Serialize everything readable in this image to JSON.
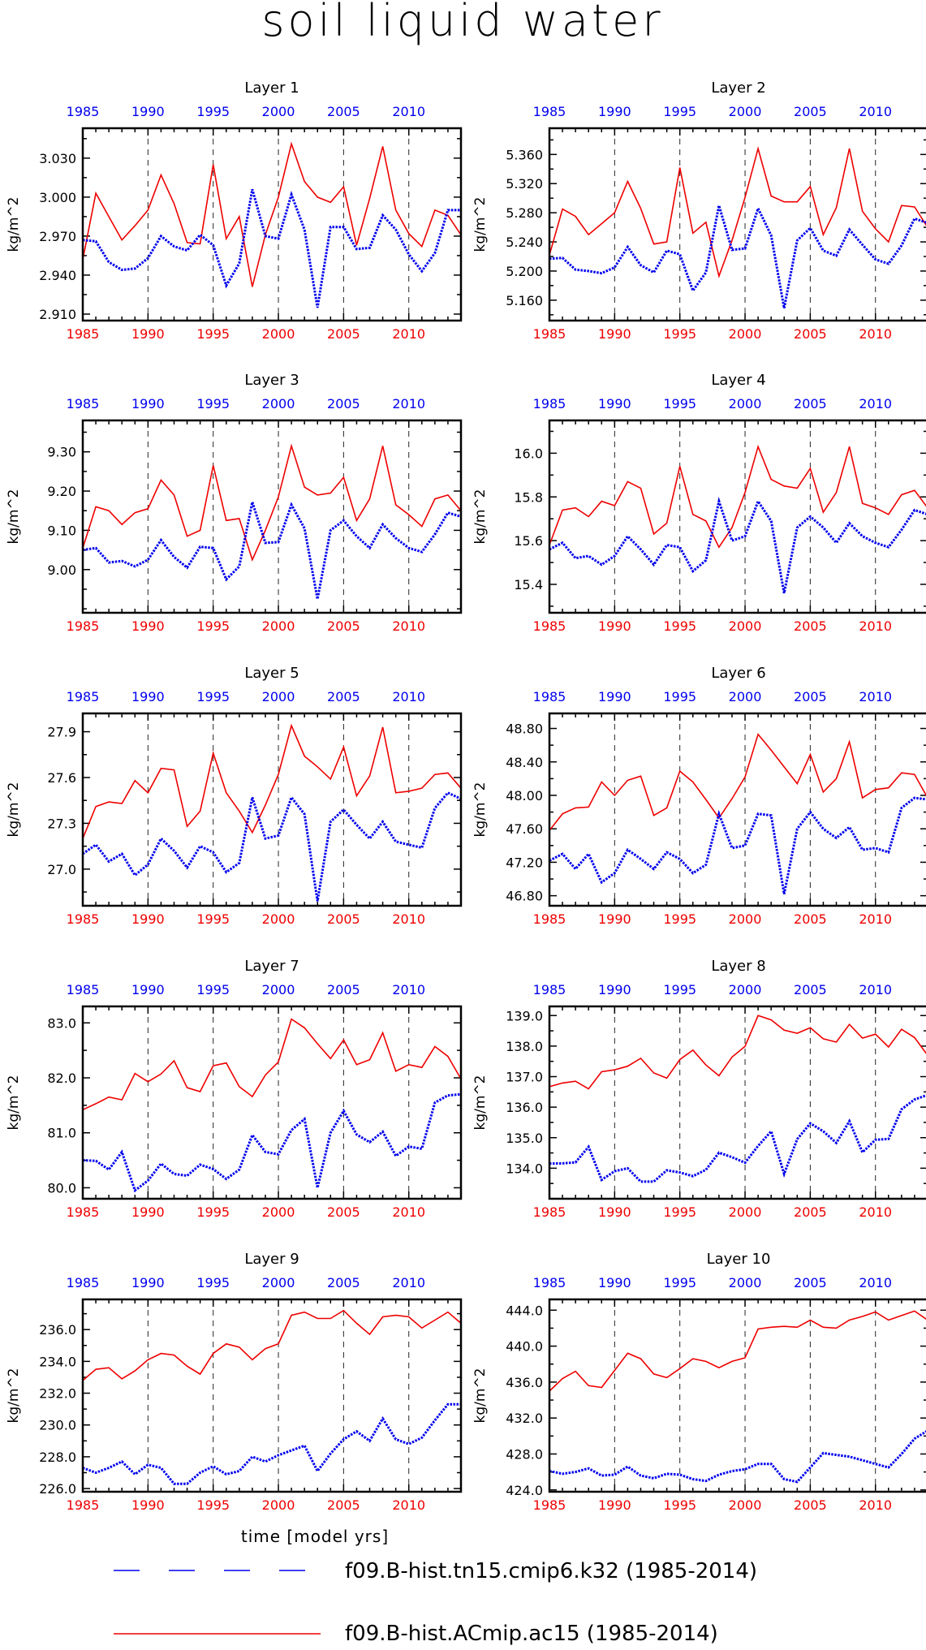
{
  "title": "soil liquid water",
  "colors": {
    "model_a": "#0000ee",
    "model_b": "#ee0000",
    "axis": "#000000"
  },
  "chart_data": [
    {
      "type": "line",
      "title": "Layer 1",
      "ylabel": "kg/m^2",
      "xlim": [
        1985,
        2014
      ],
      "ylim": [
        2.905,
        3.053
      ],
      "yticks": [
        "2.910",
        "2.940",
        "2.970",
        "3.000",
        "3.030"
      ],
      "ytick_values": [
        2.91,
        2.94,
        2.97,
        3.0,
        3.03
      ]
    },
    {
      "type": "line",
      "title": "Layer 2",
      "ylabel": "kg/m^2",
      "xlim": [
        1985,
        2014
      ],
      "ylim": [
        5.132,
        5.396
      ],
      "yticks": [
        "5.160",
        "5.200",
        "5.240",
        "5.280",
        "5.320",
        "5.360"
      ],
      "ytick_values": [
        5.16,
        5.2,
        5.24,
        5.28,
        5.32,
        5.36
      ]
    },
    {
      "type": "line",
      "title": "Layer 3",
      "ylabel": "kg/m^2",
      "xlim": [
        1985,
        2014
      ],
      "ylim": [
        8.89,
        9.38
      ],
      "yticks": [
        "9.00",
        "9.10",
        "9.20",
        "9.30"
      ],
      "ytick_values": [
        9.0,
        9.1,
        9.2,
        9.3
      ]
    },
    {
      "type": "line",
      "title": "Layer 4",
      "ylabel": "kg/m^2",
      "xlim": [
        1985,
        2014
      ],
      "ylim": [
        15.27,
        16.15
      ],
      "yticks": [
        "15.4",
        "15.6",
        "15.8",
        "16.0"
      ],
      "ytick_values": [
        15.4,
        15.6,
        15.8,
        16.0
      ]
    },
    {
      "type": "line",
      "title": "Layer 5",
      "ylabel": "kg/m^2",
      "xlim": [
        1985,
        2014
      ],
      "ylim": [
        26.76,
        28.02
      ],
      "yticks": [
        "27.0",
        "27.3",
        "27.6",
        "27.9"
      ],
      "ytick_values": [
        27.0,
        27.3,
        27.6,
        27.9
      ]
    },
    {
      "type": "line",
      "title": "Layer 6",
      "ylabel": "kg/m^2",
      "xlim": [
        1985,
        2014
      ],
      "ylim": [
        46.68,
        48.98
      ],
      "yticks": [
        "46.80",
        "47.20",
        "47.60",
        "48.00",
        "48.40",
        "48.80"
      ],
      "ytick_values": [
        46.8,
        47.2,
        47.6,
        48.0,
        48.4,
        48.8
      ]
    },
    {
      "type": "line",
      "title": "Layer 7",
      "ylabel": "kg/m^2",
      "xlim": [
        1985,
        2014
      ],
      "ylim": [
        79.8,
        83.3
      ],
      "yticks": [
        "80.0",
        "81.0",
        "82.0",
        "83.0"
      ],
      "ytick_values": [
        80.0,
        81.0,
        82.0,
        83.0
      ]
    },
    {
      "type": "line",
      "title": "Layer 8",
      "ylabel": "kg/m^2",
      "xlim": [
        1985,
        2014
      ],
      "ylim": [
        133.0,
        139.3
      ],
      "yticks": [
        "134.0",
        "135.0",
        "136.0",
        "137.0",
        "138.0",
        "139.0"
      ],
      "ytick_values": [
        134,
        135,
        136,
        137,
        138,
        139
      ]
    },
    {
      "type": "line",
      "title": "Layer 9",
      "ylabel": "kg/m^2",
      "xlim": [
        1985,
        2014
      ],
      "ylim": [
        225.8,
        237.9
      ],
      "yticks": [
        "226.0",
        "228.0",
        "230.0",
        "232.0",
        "234.0",
        "236.0"
      ],
      "ytick_values": [
        226,
        228,
        230,
        232,
        234,
        236
      ]
    },
    {
      "type": "line",
      "title": "Layer 10",
      "ylabel": "kg/m^2",
      "xlim": [
        1985,
        2014
      ],
      "ylim": [
        423.8,
        445.2
      ],
      "yticks": [
        "424.0",
        "428.0",
        "432.0",
        "436.0",
        "440.0",
        "444.0"
      ],
      "ytick_values": [
        424,
        428,
        432,
        436,
        440,
        444
      ]
    }
  ],
  "x_years": [
    1985,
    1986,
    1987,
    1988,
    1989,
    1990,
    1991,
    1992,
    1993,
    1994,
    1995,
    1996,
    1997,
    1998,
    1999,
    2000,
    2001,
    2002,
    2003,
    2004,
    2005,
    2006,
    2007,
    2008,
    2009,
    2010,
    2011,
    2012,
    2013,
    2014
  ],
  "xticks": [
    "1985",
    "1990",
    "1995",
    "2000",
    "2005",
    "2010"
  ],
  "xtick_values": [
    1985,
    1990,
    1995,
    2000,
    2005,
    2010
  ],
  "series_by_layer": [
    {
      "blue": [
        2.967,
        2.966,
        2.95,
        2.944,
        2.945,
        2.953,
        2.97,
        2.962,
        2.959,
        2.971,
        2.963,
        2.932,
        2.949,
        3.006,
        2.97,
        2.968,
        3.002,
        2.975,
        2.915,
        2.977,
        2.977,
        2.96,
        2.961,
        2.986,
        2.975,
        2.956,
        2.943,
        2.957,
        2.99,
        2.99
      ],
      "red": [
        2.952,
        3.003,
        2.985,
        2.967,
        2.978,
        2.99,
        3.017,
        2.995,
        2.965,
        2.964,
        3.025,
        2.968,
        2.985,
        2.931,
        2.971,
        3.0,
        3.041,
        3.012,
        3.0,
        2.996,
        3.008,
        2.963,
        2.999,
        3.039,
        2.99,
        2.972,
        2.962,
        2.99,
        2.986,
        2.971
      ]
    },
    {
      "blue": [
        5.217,
        5.218,
        5.202,
        5.2,
        5.197,
        5.205,
        5.233,
        5.208,
        5.198,
        5.228,
        5.223,
        5.173,
        5.198,
        5.29,
        5.229,
        5.231,
        5.286,
        5.249,
        5.149,
        5.242,
        5.259,
        5.228,
        5.221,
        5.257,
        5.236,
        5.216,
        5.21,
        5.235,
        5.272,
        5.266
      ],
      "red": [
        5.222,
        5.285,
        5.275,
        5.25,
        5.265,
        5.28,
        5.323,
        5.286,
        5.237,
        5.24,
        5.342,
        5.252,
        5.267,
        5.193,
        5.242,
        5.301,
        5.368,
        5.303,
        5.295,
        5.295,
        5.316,
        5.25,
        5.287,
        5.368,
        5.282,
        5.258,
        5.24,
        5.29,
        5.288,
        5.26
      ]
    },
    {
      "blue": [
        9.05,
        9.055,
        9.018,
        9.022,
        9.008,
        9.025,
        9.075,
        9.032,
        9.005,
        9.058,
        9.055,
        8.975,
        9.008,
        9.172,
        9.068,
        9.07,
        9.165,
        9.105,
        8.925,
        9.1,
        9.125,
        9.085,
        9.055,
        9.115,
        9.08,
        9.055,
        9.045,
        9.09,
        9.145,
        9.135
      ],
      "red": [
        9.055,
        9.16,
        9.15,
        9.115,
        9.145,
        9.155,
        9.228,
        9.19,
        9.085,
        9.1,
        9.265,
        9.125,
        9.13,
        9.025,
        9.1,
        9.185,
        9.315,
        9.21,
        9.19,
        9.195,
        9.235,
        9.125,
        9.18,
        9.315,
        9.165,
        9.14,
        9.11,
        9.18,
        9.19,
        9.15
      ]
    },
    {
      "blue": [
        15.56,
        15.59,
        15.52,
        15.53,
        15.49,
        15.53,
        15.62,
        15.56,
        15.49,
        15.58,
        15.57,
        15.46,
        15.51,
        15.78,
        15.6,
        15.62,
        15.78,
        15.69,
        15.36,
        15.66,
        15.71,
        15.66,
        15.59,
        15.68,
        15.62,
        15.59,
        15.57,
        15.65,
        15.74,
        15.72
      ],
      "red": [
        15.58,
        15.74,
        15.75,
        15.71,
        15.78,
        15.76,
        15.87,
        15.84,
        15.63,
        15.68,
        15.94,
        15.72,
        15.69,
        15.57,
        15.66,
        15.82,
        16.03,
        15.88,
        15.85,
        15.84,
        15.93,
        15.73,
        15.82,
        16.03,
        15.77,
        15.75,
        15.72,
        15.81,
        15.83,
        15.75
      ]
    },
    {
      "blue": [
        27.1,
        27.16,
        27.05,
        27.1,
        26.96,
        27.03,
        27.2,
        27.12,
        27.01,
        27.15,
        27.11,
        26.98,
        27.04,
        27.47,
        27.2,
        27.22,
        27.47,
        27.36,
        26.79,
        27.31,
        27.39,
        27.29,
        27.2,
        27.31,
        27.18,
        27.16,
        27.14,
        27.4,
        27.5,
        27.46
      ],
      "red": [
        27.2,
        27.41,
        27.44,
        27.43,
        27.58,
        27.5,
        27.66,
        27.65,
        27.28,
        27.38,
        27.76,
        27.5,
        27.38,
        27.24,
        27.42,
        27.62,
        27.94,
        27.74,
        27.67,
        27.59,
        27.8,
        27.48,
        27.61,
        27.93,
        27.5,
        27.51,
        27.53,
        27.62,
        27.63,
        27.53
      ]
    },
    {
      "blue": [
        47.22,
        47.3,
        47.12,
        47.3,
        46.96,
        47.07,
        47.35,
        47.24,
        47.12,
        47.32,
        47.24,
        47.07,
        47.17,
        47.78,
        47.37,
        47.4,
        47.78,
        47.76,
        46.82,
        47.6,
        47.8,
        47.6,
        47.49,
        47.62,
        47.35,
        47.37,
        47.32,
        47.85,
        47.97,
        47.95
      ],
      "red": [
        47.58,
        47.78,
        47.85,
        47.86,
        48.16,
        48.0,
        48.18,
        48.23,
        47.76,
        47.85,
        48.29,
        48.16,
        47.95,
        47.73,
        47.96,
        48.22,
        48.73,
        48.54,
        48.34,
        48.14,
        48.49,
        48.04,
        48.2,
        48.64,
        47.97,
        48.07,
        48.09,
        48.27,
        48.25,
        47.97
      ]
    },
    {
      "blue": [
        80.5,
        80.49,
        80.33,
        80.65,
        79.95,
        80.13,
        80.44,
        80.25,
        80.22,
        80.42,
        80.34,
        80.16,
        80.33,
        80.96,
        80.65,
        80.61,
        81.05,
        81.25,
        80.0,
        81.0,
        81.4,
        80.97,
        80.83,
        81.02,
        80.58,
        80.75,
        80.71,
        81.55,
        81.68,
        81.7
      ],
      "red": [
        81.42,
        81.53,
        81.65,
        81.6,
        82.08,
        81.93,
        82.07,
        82.31,
        81.82,
        81.75,
        82.22,
        82.27,
        81.84,
        81.66,
        82.05,
        82.29,
        83.07,
        82.91,
        82.62,
        82.35,
        82.69,
        82.24,
        82.33,
        82.82,
        82.12,
        82.24,
        82.19,
        82.57,
        82.39,
        81.98
      ]
    },
    {
      "blue": [
        134.15,
        134.16,
        134.19,
        134.7,
        133.62,
        133.9,
        134.0,
        133.56,
        133.56,
        133.93,
        133.86,
        133.74,
        133.95,
        134.51,
        134.36,
        134.18,
        134.73,
        135.21,
        133.81,
        134.95,
        135.47,
        135.21,
        134.83,
        135.54,
        134.52,
        134.93,
        134.96,
        135.93,
        136.25,
        136.4
      ],
      "red": [
        136.67,
        136.79,
        136.85,
        136.6,
        137.16,
        137.22,
        137.34,
        137.6,
        137.12,
        136.95,
        137.56,
        137.87,
        137.38,
        137.03,
        137.64,
        137.99,
        139.0,
        138.86,
        138.52,
        138.42,
        138.6,
        138.24,
        138.13,
        138.71,
        138.26,
        138.39,
        137.97,
        138.55,
        138.28,
        137.7
      ]
    },
    {
      "blue": [
        227.3,
        227.0,
        227.3,
        227.7,
        226.9,
        227.5,
        227.3,
        226.3,
        226.3,
        227.0,
        227.4,
        226.9,
        227.1,
        228.0,
        227.7,
        228.1,
        228.4,
        228.7,
        227.1,
        228.2,
        229.1,
        229.6,
        229.0,
        230.4,
        229.1,
        228.8,
        229.2,
        230.3,
        231.3,
        231.3
      ],
      "red": [
        232.8,
        233.5,
        233.6,
        232.9,
        233.4,
        234.1,
        234.5,
        234.4,
        233.7,
        233.2,
        234.5,
        235.1,
        234.9,
        234.1,
        234.8,
        235.1,
        236.9,
        237.1,
        236.7,
        236.7,
        237.2,
        236.4,
        235.7,
        236.8,
        236.9,
        236.8,
        236.1,
        236.6,
        237.1,
        236.4
      ]
    },
    {
      "blue": [
        426.1,
        425.8,
        426.0,
        426.4,
        425.6,
        425.7,
        426.6,
        425.6,
        425.3,
        425.8,
        425.7,
        425.2,
        425.0,
        425.7,
        426.1,
        426.3,
        426.9,
        426.9,
        425.2,
        424.9,
        426.5,
        428.1,
        427.9,
        427.7,
        427.3,
        426.9,
        426.5,
        428.0,
        429.7,
        430.6
      ],
      "red": [
        435.0,
        436.4,
        437.2,
        435.6,
        435.4,
        437.3,
        439.2,
        438.6,
        436.9,
        436.5,
        437.5,
        438.6,
        438.3,
        437.6,
        438.3,
        438.7,
        441.9,
        442.1,
        442.2,
        442.1,
        442.9,
        442.1,
        442.0,
        442.9,
        443.3,
        443.8,
        442.9,
        443.4,
        443.9,
        442.9
      ]
    }
  ],
  "xlabel": "time [model yrs]",
  "legend": [
    {
      "label": "f09.B-hist.tn15.cmip6.k32 (1985-2014)",
      "style": "dashed",
      "color": "#0000ee"
    },
    {
      "label": "f09.B-hist.ACmip.ac15 (1985-2014)",
      "style": "solid",
      "color": "#ee0000"
    }
  ]
}
